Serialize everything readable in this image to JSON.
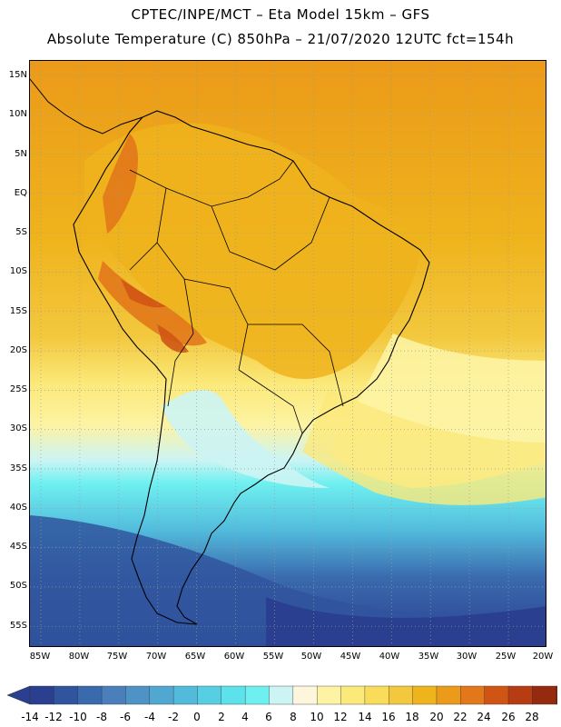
{
  "header": {
    "line1": "CPTEC/INPE/MCT –  Eta Model 15km – GFS",
    "line2": "Absolute Temperature (C) 850hPa – 21/07/2020 12UTC fct=154h"
  },
  "map": {
    "lat_labels": [
      "15N",
      "10N",
      "5N",
      "EQ",
      "5S",
      "10S",
      "15S",
      "20S",
      "25S",
      "30S",
      "35S",
      "40S",
      "45S",
      "50S",
      "55S"
    ],
    "lon_labels": [
      "85W",
      "80W",
      "75W",
      "70W",
      "65W",
      "60W",
      "55W",
      "50W",
      "45W",
      "40W",
      "35W",
      "30W",
      "25W",
      "20W"
    ],
    "lat_range": [
      17,
      -58
    ],
    "lon_range": [
      -86,
      -19.5
    ],
    "gridlines": "dotted",
    "field": "temperature 850hPa"
  },
  "colorbar": {
    "labels": [
      "-14",
      "-12",
      "-10",
      "-8",
      "-6",
      "-4",
      "-2",
      "0",
      "2",
      "4",
      "6",
      "8",
      "10",
      "12",
      "14",
      "16",
      "18",
      "20",
      "22",
      "24",
      "26",
      "28"
    ],
    "colors": [
      "#2a3f8f",
      "#30559e",
      "#3a6aae",
      "#4a7fbc",
      "#4f93c6",
      "#50a7d2",
      "#52bbdc",
      "#56cfe4",
      "#5de1ea",
      "#6ff0f0",
      "#ccf4f4",
      "#fdf6dc",
      "#fdf3a3",
      "#fbe97a",
      "#f8dc5a",
      "#f3c83e",
      "#efb31c",
      "#eb9a19",
      "#e2781a",
      "#d05515",
      "#b63c13",
      "#952a0f",
      "#7a1e0d"
    ],
    "under_color": "#2a3f8f",
    "over_color": "#7a1e0d"
  }
}
